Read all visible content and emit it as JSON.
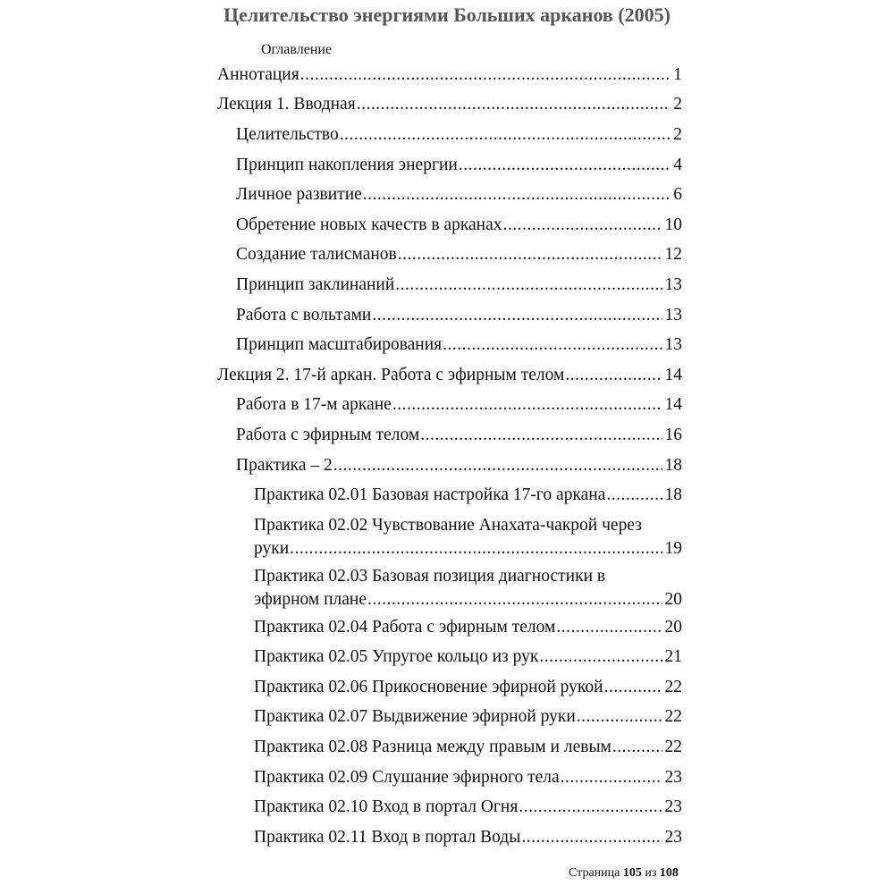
{
  "title": "Целительство энергиями Больших арканов (2005)",
  "toc_heading": "Оглавление",
  "entries": [
    {
      "level": 0,
      "text": "Аннотация",
      "page": "1"
    },
    {
      "level": 0,
      "text": "Лекция 1. Вводная",
      "page": "2"
    },
    {
      "level": 1,
      "text": "Целительство",
      "page": "2"
    },
    {
      "level": 1,
      "text": "Принцип накопления энергии",
      "page": "4"
    },
    {
      "level": 1,
      "text": "Личное развитие",
      "page": "6"
    },
    {
      "level": 1,
      "text": "Обретение новых качеств в арканах",
      "page": "10"
    },
    {
      "level": 1,
      "text": "Создание талисманов",
      "page": "12"
    },
    {
      "level": 1,
      "text": "Принцип заклинаний",
      "page": "13"
    },
    {
      "level": 1,
      "text": "Работа с вольтами",
      "page": "13"
    },
    {
      "level": 1,
      "text": "Принцип масштабирования",
      "page": "13"
    },
    {
      "level": 0,
      "text": "Лекция 2. 17-й аркан. Работа с эфирным телом",
      "page": "14"
    },
    {
      "level": 1,
      "text": "Работа в 17-м аркане",
      "page": "14"
    },
    {
      "level": 1,
      "text": "Работа с эфирным телом",
      "page": "16"
    },
    {
      "level": 1,
      "text": "Практика – 2",
      "page": "18"
    },
    {
      "level": 2,
      "text": "Практика 02.01 Базовая настройка 17-го аркана",
      "page": "18"
    },
    {
      "level": 2,
      "text": "Практика 02.02 Чувствование Анахата-чакрой через",
      "text2": "руки",
      "page": "19"
    },
    {
      "level": 2,
      "text": "Практика 02.03 Базовая позиция диагностики в",
      "text2": "эфирном плане",
      "page": "20"
    },
    {
      "level": 2,
      "text": "Практика 02.04 Работа с эфирным телом",
      "page": "20"
    },
    {
      "level": 2,
      "text": "Практика 02.05 Упругое кольцо из рук",
      "page": "21"
    },
    {
      "level": 2,
      "text": "Практика 02.06 Прикосновение эфирной рукой",
      "page": "22"
    },
    {
      "level": 2,
      "text": "Практика 02.07 Выдвижение эфирной руки",
      "page": "22"
    },
    {
      "level": 2,
      "text": "Практика 02.08 Разница между правым и левым",
      "page": "22"
    },
    {
      "level": 2,
      "text": "Практика 02.09 Слушание эфирного тела",
      "page": "23"
    },
    {
      "level": 2,
      "text": "Практика 02.10 Вход в портал Огня",
      "page": "23"
    },
    {
      "level": 2,
      "text": "Практика 02.11 Вход в портал Воды",
      "page": "23"
    }
  ],
  "footer": {
    "prefix": "Страница",
    "current": "105",
    "sep": "из",
    "total": "108"
  }
}
